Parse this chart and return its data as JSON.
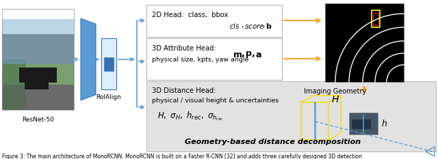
{
  "caption": "Figure 3: The main architecture of MonoRCNN. MonoRCNN is built on a Faster R-CNN [32] and adds three carefully designed 3D detection",
  "resnet_label": "ResNet-50",
  "roialign_label": "RoIAlign",
  "head_2d_line1": "2D Head:  class,  bbox",
  "head_3d_attr_line1": "3D Attribute Head:",
  "head_3d_attr_line2": "physical size, kpts, yaw angle",
  "head_3d_dist_line1": "3D Distance Head:",
  "head_3d_dist_line2": "physical / visual height & uncertainties",
  "geom_label": "Geometry-based distance decomposition",
  "imaging_label": "Imaging Geometry",
  "blue": "#5b9bd5",
  "blue_dark": "#2e75b6",
  "orange": "#f5a623",
  "yellow": "#f0e040",
  "gray_bg": "#e8e8e8",
  "box_border": "#aaaaaa",
  "white": "#ffffff",
  "black": "#000000"
}
